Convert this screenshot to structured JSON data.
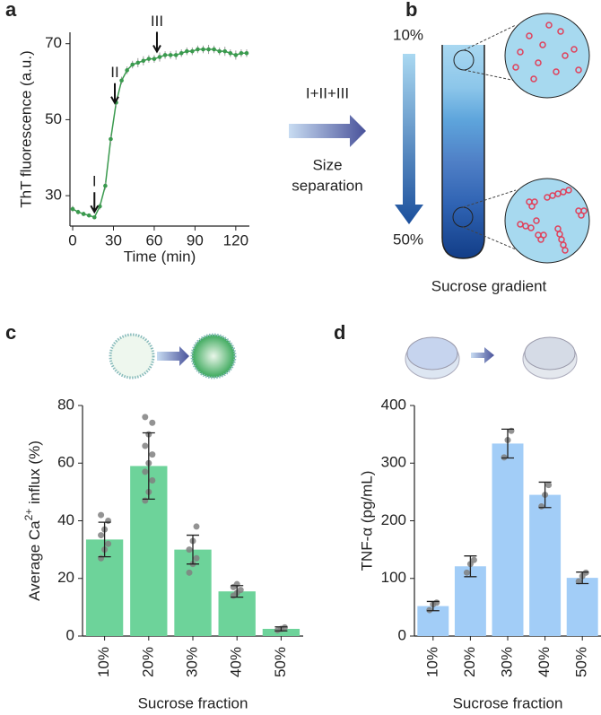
{
  "chart_data": [
    {
      "type": "line",
      "panel": "a",
      "xlabel": "Time (min)",
      "ylabel": "ThT fluorescence (a.u.)",
      "x": [
        0,
        4,
        8,
        12,
        16,
        20,
        24,
        28,
        32,
        36,
        40,
        44,
        48,
        52,
        56,
        60,
        64,
        68,
        72,
        76,
        80,
        84,
        88,
        92,
        96,
        100,
        104,
        108,
        112,
        116,
        120,
        124,
        128
      ],
      "values": [
        26.5,
        25.7,
        25.2,
        24.8,
        24.3,
        27.2,
        32.6,
        44.9,
        54.5,
        60.3,
        63,
        64.5,
        65,
        65.5,
        66,
        66,
        66.5,
        67,
        67,
        67,
        67.5,
        68,
        68,
        68.5,
        68.5,
        68.5,
        68.5,
        68,
        68,
        67.5,
        67,
        67.5,
        67.5
      ],
      "errors": [
        0.8,
        0.6,
        0.6,
        0.5,
        0.5,
        0.8,
        1,
        1.2,
        1.2,
        1,
        1,
        1,
        1.2,
        1.2,
        1,
        1,
        1.2,
        1,
        1,
        1.2,
        1,
        1,
        1,
        1,
        1,
        1.2,
        1,
        1,
        1.2,
        1,
        1.2,
        1,
        1
      ],
      "color": "#3a9a4e",
      "xlim": [
        -2,
        130
      ],
      "xticks": [
        0,
        30,
        60,
        90,
        120
      ],
      "ylim": [
        22,
        73
      ],
      "yticks": [
        30,
        50,
        70
      ],
      "annotations": [
        {
          "text": "I",
          "x": 16,
          "y": 24.3
        },
        {
          "text": "II",
          "x": 31,
          "y": 53
        },
        {
          "text": "III",
          "x": 62,
          "y": 66.5
        }
      ]
    },
    {
      "type": "bar",
      "panel": "c",
      "xlabel": "Sucrose fraction",
      "ylabel": {
        "text": "Average Ca",
        "sup": "2+",
        "after": " influx (%)"
      },
      "categories": [
        "10%",
        "20%",
        "30%",
        "40%",
        "50%"
      ],
      "values": [
        33.5,
        59,
        30,
        15.5,
        2.5
      ],
      "errors": [
        6,
        11.5,
        5,
        2,
        0.7
      ],
      "points": [
        [
          27,
          30,
          32,
          35,
          37,
          40,
          42
        ],
        [
          47,
          50,
          54,
          57,
          60,
          63,
          66,
          70,
          74,
          76
        ],
        [
          22,
          25,
          27,
          30,
          33,
          38
        ],
        [
          14,
          15,
          16,
          17,
          18
        ],
        [
          2,
          2.5,
          3
        ]
      ],
      "color": "#6dd39a",
      "ylim": [
        0,
        80
      ],
      "yticks": [
        0,
        20,
        40,
        60,
        80
      ]
    },
    {
      "type": "bar",
      "panel": "d",
      "xlabel": "Sucrose fraction",
      "ylabel": "TNF-α (pg/mL)",
      "categories": [
        "10%",
        "20%",
        "30%",
        "40%",
        "50%"
      ],
      "values": [
        52,
        121,
        334,
        245,
        101
      ],
      "errors": [
        8,
        18,
        25,
        22,
        10
      ],
      "points": [
        [
          45,
          55,
          58
        ],
        [
          110,
          125,
          132
        ],
        [
          310,
          340,
          356
        ],
        [
          225,
          245,
          262
        ],
        [
          95,
          104,
          110
        ]
      ],
      "color": "#a2cdf7",
      "ylim": [
        0,
        400
      ],
      "yticks": [
        0,
        100,
        200,
        300,
        400
      ]
    }
  ],
  "diagram": {
    "panel": "b",
    "arrow_label": "I+II+III",
    "arrow_text": [
      "Size",
      "separation"
    ],
    "top_label": "10%",
    "bottom_label": "50%",
    "caption": "Sucrose gradient"
  }
}
